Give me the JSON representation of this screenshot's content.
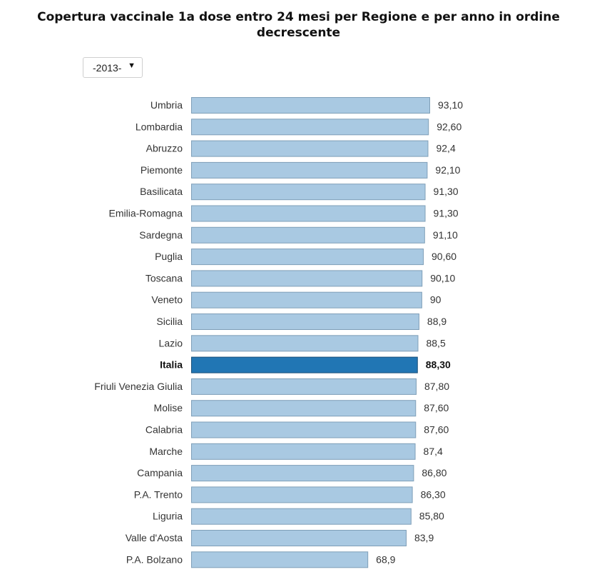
{
  "title": "Copertura vaccinale 1a dose entro 24 mesi per Regione e per anno in ordine decrescente",
  "year_select": {
    "value": "-2013-",
    "arrow": "▼"
  },
  "colors": {
    "bar": "#a9c9e2",
    "bar_stroke": "#7f9fb8",
    "highlight": "#2176b4",
    "highlight_stroke": "#1a4f78"
  },
  "chart_data": {
    "type": "bar",
    "orientation": "horizontal",
    "categories": [
      "Umbria",
      "Lombardia",
      "Abruzzo",
      "Piemonte",
      "Basilicata",
      "Emilia-Romagna",
      "Sardegna",
      "Puglia",
      "Toscana",
      "Veneto",
      "Sicilia",
      "Lazio",
      "Italia",
      "Friuli Venezia Giulia",
      "Molise",
      "Calabria",
      "Marche",
      "Campania",
      "P.A. Trento",
      "Liguria",
      "Valle d'Aosta",
      "P.A. Bolzano"
    ],
    "values": [
      93.1,
      92.6,
      92.4,
      92.1,
      91.3,
      91.3,
      91.1,
      90.6,
      90.1,
      90,
      88.9,
      88.5,
      88.3,
      87.8,
      87.6,
      87.6,
      87.4,
      86.8,
      86.3,
      85.8,
      83.9,
      68.9
    ],
    "value_labels": [
      "93,10",
      "92,60",
      "92,4",
      "92,10",
      "91,30",
      "91,30",
      "91,10",
      "90,60",
      "90,10",
      "90",
      "88,9",
      "88,5",
      "88,30",
      "87,80",
      "87,60",
      "87,60",
      "87,4",
      "86,80",
      "86,30",
      "85,80",
      "83,9",
      "68,9"
    ],
    "highlight": "Italia",
    "xlim": [
      0,
      93.1
    ]
  }
}
